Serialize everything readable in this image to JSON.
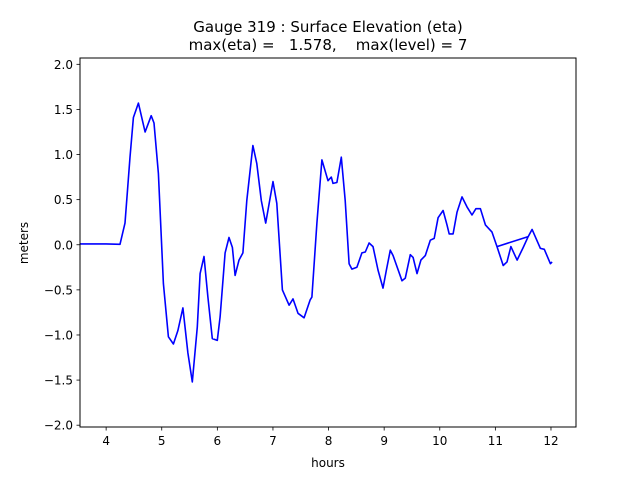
{
  "chart_data": {
    "type": "line",
    "title": "Gauge 319 : Surface Elevation (eta)",
    "subtitle": "max(eta) =   1.578,    max(level) = 7",
    "xlabel": "hours",
    "ylabel": "meters",
    "xlim": [
      3.53,
      12.45
    ],
    "ylim": [
      -2.02,
      2.07
    ],
    "xticks": [
      4,
      5,
      6,
      7,
      8,
      9,
      10,
      11,
      12
    ],
    "xtick_labels": [
      "4",
      "5",
      "6",
      "7",
      "8",
      "9",
      "10",
      "11",
      "12"
    ],
    "yticks": [
      -2.0,
      -1.5,
      -1.0,
      -0.5,
      0.0,
      0.5,
      1.0,
      1.5,
      2.0
    ],
    "ytick_labels": [
      "−2.0",
      "−1.5",
      "−1.0",
      "−0.5",
      "0.0",
      "0.5",
      "1.0",
      "1.5",
      "2.0"
    ],
    "grid": false,
    "series": [
      {
        "name": "eta",
        "color": "#0000ff",
        "x": [
          3.53,
          4.0,
          4.25,
          4.34,
          4.43,
          4.49,
          4.58,
          4.7,
          4.81,
          4.86,
          4.94,
          5.03,
          5.12,
          5.21,
          5.29,
          5.38,
          5.47,
          5.55,
          5.64,
          5.69,
          5.76,
          5.83,
          5.91,
          6.0,
          6.05,
          6.14,
          6.21,
          6.27,
          6.32,
          6.39,
          6.46,
          6.53,
          6.64,
          6.71,
          6.79,
          6.87,
          7.0,
          7.07,
          7.17,
          7.29,
          7.36,
          7.45,
          7.56,
          7.67,
          7.7,
          7.79,
          7.88,
          7.99,
          8.05,
          8.08,
          8.15,
          8.23,
          8.3,
          8.37,
          8.42,
          8.51,
          8.6,
          8.66,
          8.73,
          8.8,
          8.89,
          8.98,
          9.04,
          9.11,
          9.16,
          9.32,
          9.38,
          9.47,
          9.52,
          9.59,
          9.66,
          9.74,
          9.83,
          9.9,
          9.97,
          10.06,
          10.13,
          10.17,
          10.24,
          10.31,
          10.4,
          10.49,
          10.58,
          10.65,
          10.73,
          10.82,
          10.94,
          11.03,
          11.59,
          11.03,
          11.14,
          11.21,
          11.28,
          11.39,
          11.5,
          11.59,
          11.66,
          11.81,
          11.88,
          11.99,
          12.02
        ],
        "y": [
          0.01,
          0.01,
          0.005,
          0.24,
          0.97,
          1.41,
          1.57,
          1.25,
          1.43,
          1.35,
          0.79,
          -0.43,
          -1.02,
          -1.1,
          -0.95,
          -0.7,
          -1.2,
          -1.52,
          -0.91,
          -0.32,
          -0.13,
          -0.58,
          -1.04,
          -1.06,
          -0.8,
          -0.09,
          0.08,
          -0.03,
          -0.34,
          -0.17,
          -0.09,
          0.49,
          1.1,
          0.9,
          0.49,
          0.24,
          0.7,
          0.46,
          -0.5,
          -0.67,
          -0.6,
          -0.76,
          -0.81,
          -0.61,
          -0.58,
          0.24,
          0.94,
          0.71,
          0.75,
          0.68,
          0.69,
          0.97,
          0.49,
          -0.21,
          -0.27,
          -0.25,
          -0.09,
          -0.08,
          0.02,
          -0.02,
          -0.28,
          -0.48,
          -0.28,
          -0.06,
          -0.12,
          -0.4,
          -0.37,
          -0.11,
          -0.14,
          -0.32,
          -0.17,
          -0.12,
          0.05,
          0.07,
          0.3,
          0.38,
          0.22,
          0.12,
          0.12,
          0.36,
          0.53,
          0.42,
          0.33,
          0.4,
          0.4,
          0.22,
          0.14,
          -0.02,
          0.09,
          -0.02,
          -0.23,
          -0.19,
          -0.02,
          -0.17,
          -0.03,
          0.09,
          0.17,
          -0.04,
          -0.05,
          -0.21,
          -0.19
        ]
      }
    ]
  }
}
